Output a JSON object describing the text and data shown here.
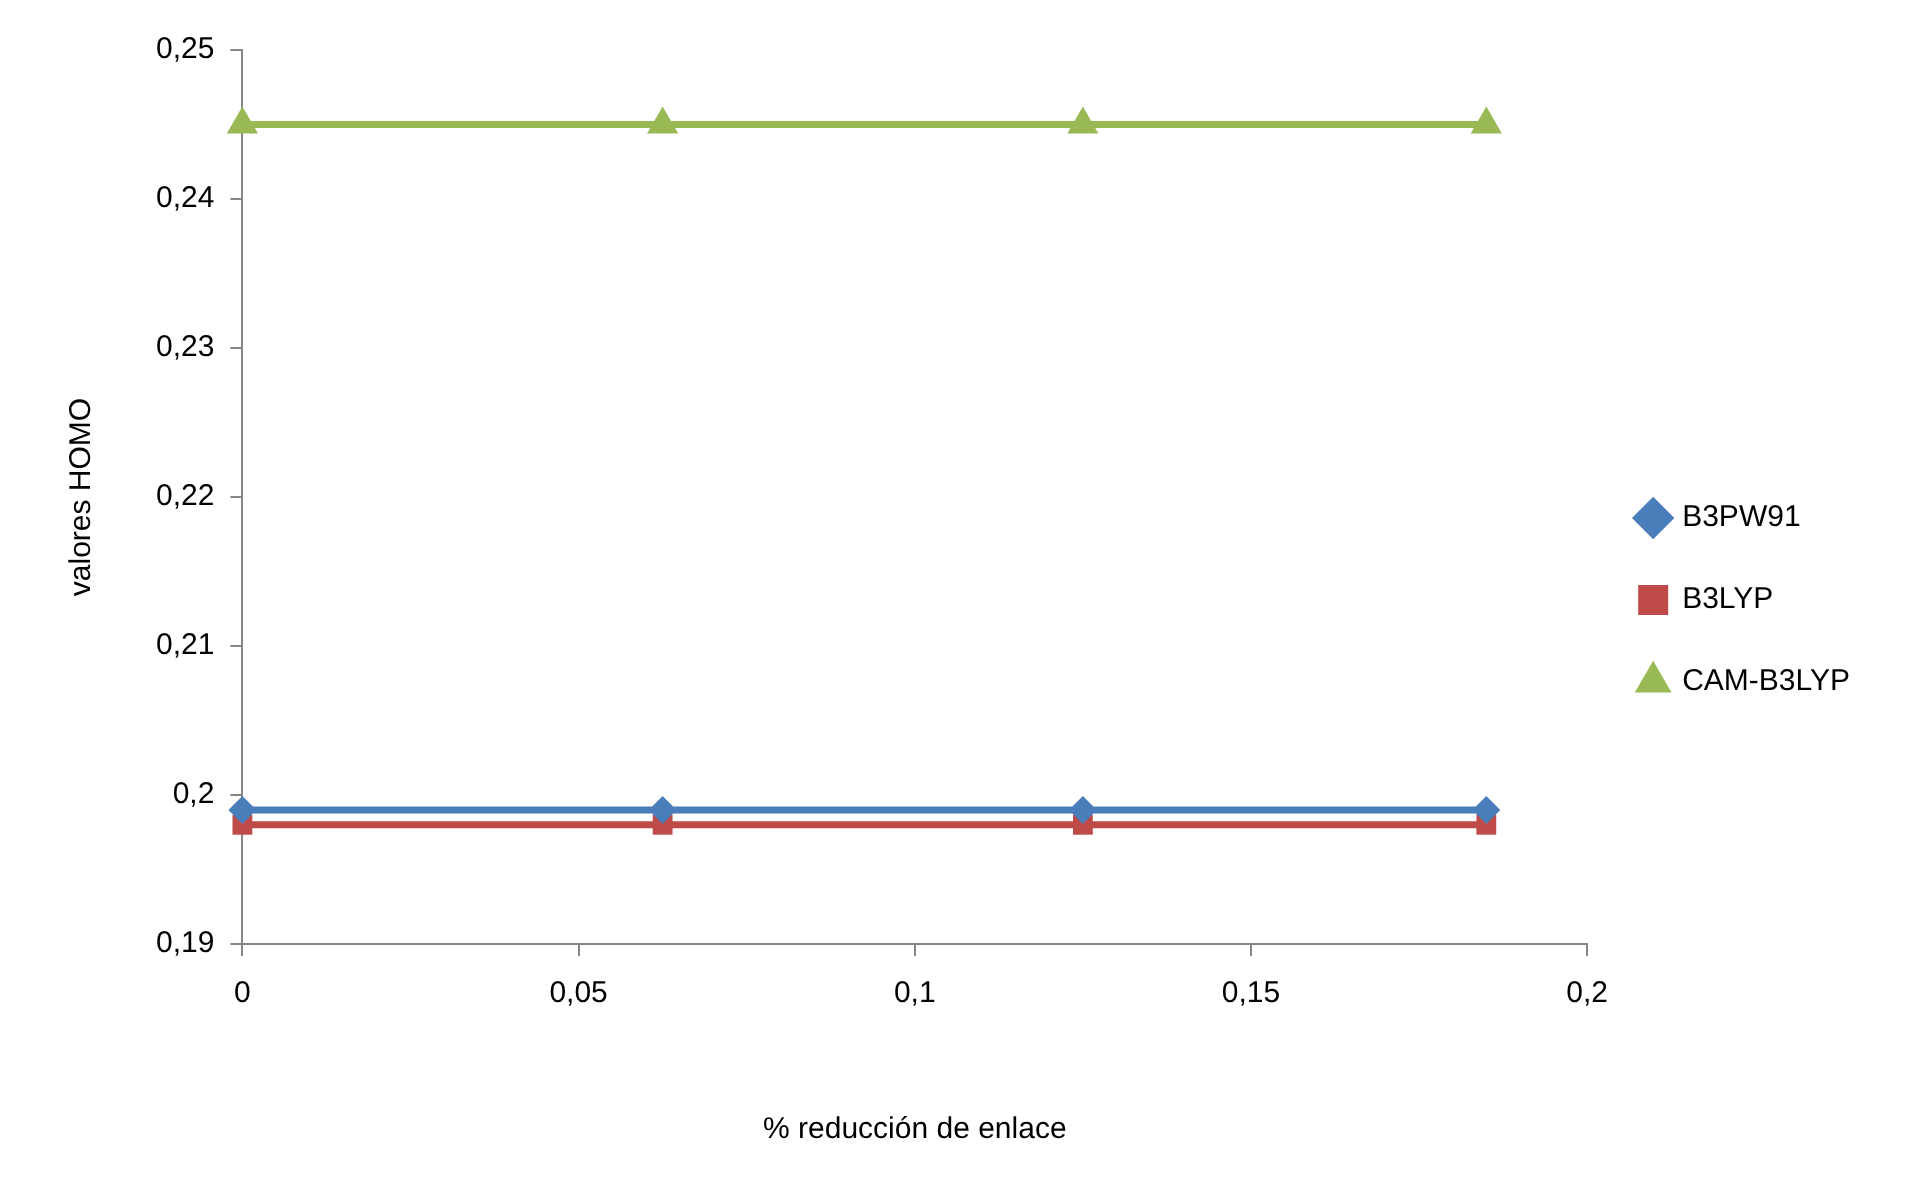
{
  "chart_data": {
    "type": "line",
    "xlabel": "% reducción de enlace",
    "ylabel": "valores HOMO",
    "x": [
      0,
      0.0625,
      0.125,
      0.185
    ],
    "series": [
      {
        "name": "B3PW91",
        "color": "#4a7ebb",
        "values": [
          0.199,
          0.199,
          0.199,
          0.199
        ],
        "marker": "diamond"
      },
      {
        "name": "B3LYP",
        "color": "#be4b48",
        "values": [
          0.198,
          0.198,
          0.198,
          0.198
        ],
        "marker": "square"
      },
      {
        "name": "CAM-B3LYP",
        "color": "#98b954",
        "values": [
          0.245,
          0.245,
          0.245,
          0.245
        ],
        "marker": "triangle"
      }
    ],
    "xlim": [
      0,
      0.2
    ],
    "xticks": [
      0,
      {
        "value": 0.05,
        "label": "0,05"
      },
      {
        "value": 0.1,
        "label": "0,1"
      },
      {
        "value": 0.15,
        "label": "0,15"
      },
      {
        "value": 0.2,
        "label": "0,2"
      }
    ],
    "ylim": [
      0.19,
      0.25
    ],
    "yticks": [
      {
        "value": 0.19,
        "label": "0,19"
      },
      {
        "value": 0.2,
        "label": "0,2"
      },
      {
        "value": 0.21,
        "label": "0,21"
      },
      {
        "value": 0.22,
        "label": "0,22"
      },
      {
        "value": 0.23,
        "label": "0,23"
      },
      {
        "value": 0.24,
        "label": "0,24"
      },
      {
        "value": 0.25,
        "label": "0,25"
      }
    ],
    "grid": false,
    "legend": "right",
    "line_style": "solid"
  }
}
